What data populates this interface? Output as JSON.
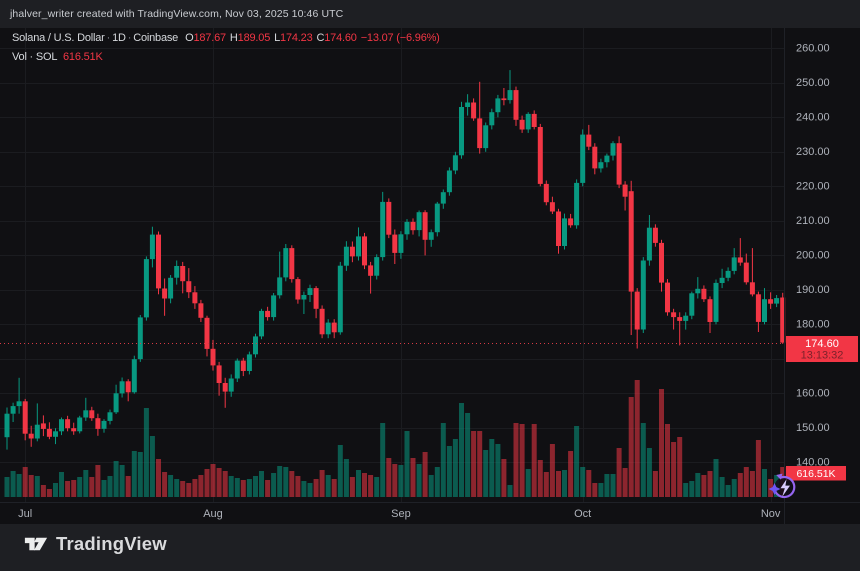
{
  "attribution": "jhalver_writer created with TradingView.com, Nov 03, 2025 10:46 UTC",
  "legend": {
    "symbol": "Solana / U.S. Dollar",
    "separator": "·",
    "interval": "1D",
    "exchange": "Coinbase",
    "o_label": "O",
    "o_value": "187.67",
    "h_label": "H",
    "h_value": "189.05",
    "l_label": "L",
    "l_value": "174.23",
    "c_label": "C",
    "c_value": "174.60",
    "change": "−13.07 (−6.96%)",
    "vol_label": "Vol · SOL",
    "vol_value": "616.51K"
  },
  "price_label": {
    "price": "174.60",
    "countdown": "13:13:32"
  },
  "volume_label": "616.51K",
  "footer": {
    "brand": "TradingView"
  },
  "icons": {
    "boost_icon": "lightning-refresh",
    "sparkle_icon": "sparkle",
    "brand_icon": "tradingview-logo"
  },
  "colors": {
    "up": "#089981",
    "down": "#f23645",
    "volume_up": "rgba(8,153,129,0.55)",
    "volume_down": "rgba(242,54,69,0.55)",
    "label_bg": "#f23645",
    "label_text": "#ffffff",
    "countdown_text": "#7c222b",
    "axis_text": "#aeb2ba",
    "grid": "#1b1c20",
    "chart_bg": "#101013",
    "frame_bg": "#1e1f23",
    "price_line": "#d63a45"
  },
  "chart_data": {
    "type": "candlestick",
    "title": "Solana / U.S. Dollar",
    "exchange": "Coinbase",
    "interval": "1D",
    "x_start": "2025-06-28",
    "x_end": "2025-11-03",
    "ylim_visible": [
      130,
      266
    ],
    "price_axis_ticks": [
      "260.00",
      "250.00",
      "240.00",
      "230.00",
      "220.00",
      "210.00",
      "200.00",
      "190.00",
      "180.00",
      "170.00",
      "160.00",
      "150.00",
      "140.00"
    ],
    "months": [
      {
        "label": "Jul",
        "day_index": 3
      },
      {
        "label": "Aug",
        "day_index": 34
      },
      {
        "label": "Sep",
        "day_index": 65
      },
      {
        "label": "Oct",
        "day_index": 95
      },
      {
        "label": "Nov",
        "day_index": 126
      }
    ],
    "last": {
      "open": 187.67,
      "high": 189.05,
      "low": 174.23,
      "close": 174.6,
      "volume_k": 616.51
    },
    "volume_unit": "K SOL",
    "candles_format": [
      "open",
      "high",
      "low",
      "close",
      "volume_k"
    ],
    "candles": [
      [
        147.2,
        155.8,
        143.6,
        154.0,
        411
      ],
      [
        154.0,
        157.2,
        151.6,
        156.2,
        534
      ],
      [
        156.2,
        164.4,
        154.0,
        157.6,
        473
      ],
      [
        157.6,
        158.3,
        146.3,
        148.2,
        617
      ],
      [
        148.2,
        150.5,
        144.4,
        146.8,
        452
      ],
      [
        146.8,
        157.0,
        146.0,
        150.8,
        432
      ],
      [
        151.2,
        153.5,
        147.5,
        149.6,
        247
      ],
      [
        149.6,
        151.5,
        146.6,
        147.3,
        164
      ],
      [
        147.3,
        149.8,
        145.2,
        148.9,
        288
      ],
      [
        148.9,
        152.9,
        147.8,
        152.4,
        514
      ],
      [
        152.4,
        153.4,
        148.9,
        149.8,
        329
      ],
      [
        149.8,
        151.4,
        147.9,
        148.9,
        349
      ],
      [
        148.9,
        153.4,
        148.3,
        152.9,
        411
      ],
      [
        152.9,
        158.6,
        151.9,
        155.0,
        555
      ],
      [
        155.0,
        156.0,
        151.9,
        152.7,
        411
      ],
      [
        152.7,
        154.0,
        147.6,
        149.6,
        658
      ],
      [
        149.6,
        152.4,
        148.5,
        151.9,
        349
      ],
      [
        151.9,
        155.2,
        150.9,
        154.4,
        432
      ],
      [
        154.4,
        162.4,
        153.9,
        159.9,
        740
      ],
      [
        159.9,
        164.5,
        158.7,
        163.4,
        658
      ],
      [
        163.4,
        164.0,
        157.6,
        160.2,
        432
      ],
      [
        160.2,
        170.8,
        159.8,
        169.8,
        945
      ],
      [
        169.8,
        182.6,
        169.0,
        181.9,
        925
      ],
      [
        181.9,
        199.6,
        181.0,
        198.8,
        1829
      ],
      [
        198.8,
        208.2,
        196.4,
        205.9,
        1254
      ],
      [
        205.9,
        206.8,
        188.6,
        190.3,
        781
      ],
      [
        190.3,
        193.2,
        182.4,
        187.4,
        514
      ],
      [
        187.4,
        194.2,
        186.0,
        193.4,
        452
      ],
      [
        193.4,
        198.4,
        191.4,
        196.8,
        370
      ],
      [
        196.8,
        198.0,
        188.9,
        192.4,
        329
      ],
      [
        192.4,
        196.2,
        187.5,
        189.2,
        288
      ],
      [
        189.2,
        191.0,
        184.4,
        186.0,
        370
      ],
      [
        186.0,
        187.0,
        180.6,
        181.8,
        452
      ],
      [
        181.8,
        182.4,
        170.6,
        172.8,
        575
      ],
      [
        172.8,
        175.4,
        166.5,
        168.0,
        678
      ],
      [
        168.0,
        169.0,
        159.2,
        162.9,
        596
      ],
      [
        162.9,
        164.4,
        155.7,
        160.4,
        534
      ],
      [
        160.4,
        165.4,
        158.9,
        164.2,
        432
      ],
      [
        164.2,
        170.0,
        163.2,
        169.4,
        390
      ],
      [
        169.4,
        170.2,
        164.9,
        166.4,
        349
      ],
      [
        166.4,
        172.0,
        165.4,
        171.2,
        370
      ],
      [
        171.2,
        177.2,
        170.3,
        176.4,
        432
      ],
      [
        176.4,
        184.4,
        175.6,
        183.8,
        534
      ],
      [
        183.8,
        185.0,
        181.0,
        182.0,
        349
      ],
      [
        182.0,
        189.0,
        181.0,
        188.3,
        493
      ],
      [
        188.3,
        201.0,
        187.4,
        193.5,
        637
      ],
      [
        193.5,
        203.2,
        192.4,
        202.0,
        617
      ],
      [
        202.0,
        202.8,
        192.0,
        193.0,
        534
      ],
      [
        193.0,
        193.6,
        185.9,
        187.1,
        432
      ],
      [
        187.1,
        189.4,
        182.9,
        188.4,
        329
      ],
      [
        188.4,
        191.4,
        186.4,
        190.4,
        288
      ],
      [
        190.4,
        191.0,
        181.7,
        184.4,
        370
      ],
      [
        184.4,
        185.4,
        175.9,
        177.0,
        555
      ],
      [
        177.0,
        181.4,
        175.9,
        180.4,
        452
      ],
      [
        180.4,
        181.4,
        175.9,
        177.6,
        370
      ],
      [
        177.6,
        198.0,
        176.9,
        196.9,
        1069
      ],
      [
        196.9,
        204.0,
        195.4,
        202.4,
        781
      ],
      [
        202.4,
        203.9,
        197.9,
        199.6,
        411
      ],
      [
        199.6,
        208.0,
        198.4,
        205.4,
        555
      ],
      [
        205.4,
        206.4,
        195.9,
        197.0,
        493
      ],
      [
        197.0,
        198.0,
        188.8,
        194.0,
        452
      ],
      [
        194.0,
        200.2,
        192.9,
        199.4,
        411
      ],
      [
        199.4,
        218.3,
        198.4,
        215.4,
        1521
      ],
      [
        215.4,
        216.4,
        204.9,
        205.9,
        801
      ],
      [
        205.9,
        207.4,
        197.4,
        200.6,
        678
      ],
      [
        200.6,
        206.9,
        198.9,
        206.0,
        658
      ],
      [
        206.0,
        210.4,
        204.4,
        209.6,
        1356
      ],
      [
        209.6,
        210.6,
        205.9,
        207.2,
        801
      ],
      [
        207.2,
        212.9,
        205.4,
        212.4,
        678
      ],
      [
        212.4,
        213.0,
        199.9,
        204.4,
        925
      ],
      [
        204.4,
        207.4,
        202.4,
        206.6,
        452
      ],
      [
        206.6,
        215.4,
        205.4,
        214.9,
        617
      ],
      [
        214.9,
        219.0,
        213.4,
        218.2,
        1521
      ],
      [
        218.2,
        225.4,
        217.2,
        224.5,
        1048
      ],
      [
        224.5,
        229.9,
        223.4,
        228.9,
        1192
      ],
      [
        228.9,
        244.4,
        227.9,
        242.9,
        1932
      ],
      [
        242.9,
        246.6,
        240.4,
        244.2,
        1726
      ],
      [
        244.2,
        245.4,
        238.9,
        239.6,
        1356
      ],
      [
        239.6,
        250.2,
        229.4,
        231.0,
        1356
      ],
      [
        231.0,
        238.4,
        229.9,
        237.6,
        966
      ],
      [
        237.6,
        242.4,
        236.4,
        241.4,
        1192
      ],
      [
        241.4,
        246.4,
        239.9,
        245.4,
        1089
      ],
      [
        245.4,
        248.4,
        243.4,
        244.9,
        781
      ],
      [
        244.9,
        253.6,
        243.9,
        247.8,
        247
      ],
      [
        247.8,
        248.8,
        237.4,
        239.2,
        1521
      ],
      [
        239.2,
        240.4,
        235.4,
        236.4,
        1500
      ],
      [
        236.4,
        241.4,
        235.4,
        240.9,
        575
      ],
      [
        240.9,
        241.9,
        236.4,
        237.1,
        1500
      ],
      [
        237.1,
        238.0,
        219.9,
        220.6,
        760
      ],
      [
        220.6,
        221.6,
        214.4,
        215.3,
        514
      ],
      [
        215.3,
        216.9,
        211.9,
        212.6,
        1089
      ],
      [
        212.6,
        213.4,
        200.4,
        202.6,
        534
      ],
      [
        202.6,
        212.0,
        201.6,
        210.6,
        555
      ],
      [
        210.6,
        211.9,
        207.9,
        208.6,
        945
      ],
      [
        208.6,
        221.9,
        207.6,
        220.9,
        1459
      ],
      [
        220.9,
        236.4,
        219.9,
        234.9,
        617
      ],
      [
        234.9,
        237.7,
        230.4,
        231.4,
        555
      ],
      [
        231.4,
        232.4,
        223.4,
        225.1,
        288
      ],
      [
        225.1,
        227.9,
        223.9,
        226.9,
        288
      ],
      [
        226.9,
        229.4,
        225.4,
        228.8,
        473
      ],
      [
        228.8,
        233.0,
        227.4,
        232.4,
        473
      ],
      [
        232.4,
        234.4,
        219.4,
        220.4,
        1007
      ],
      [
        220.4,
        221.4,
        212.9,
        216.9,
        596
      ],
      [
        218.5,
        221.5,
        176.8,
        189.4,
        2055
      ],
      [
        189.4,
        190.4,
        172.9,
        178.4,
        2404
      ],
      [
        178.4,
        199.4,
        177.4,
        198.4,
        1521
      ],
      [
        198.4,
        211.6,
        196.9,
        207.9,
        1007
      ],
      [
        207.9,
        208.9,
        202.4,
        203.5,
        534
      ],
      [
        203.5,
        204.4,
        189.4,
        192.0,
        2219
      ],
      [
        192.0,
        193.0,
        182.4,
        183.4,
        1500
      ],
      [
        183.4,
        184.4,
        178.4,
        182.0,
        1130
      ],
      [
        182.0,
        183.4,
        173.8,
        180.9,
        1233
      ],
      [
        180.9,
        183.4,
        178.4,
        182.4,
        288
      ],
      [
        182.4,
        189.4,
        181.4,
        188.9,
        329
      ],
      [
        188.9,
        193.6,
        187.4,
        190.2,
        493
      ],
      [
        190.2,
        191.2,
        186.4,
        187.2,
        452
      ],
      [
        187.2,
        188.0,
        177.4,
        180.6,
        534
      ],
      [
        180.6,
        192.9,
        179.9,
        191.9,
        781
      ],
      [
        191.9,
        196.0,
        190.4,
        193.4,
        411
      ],
      [
        193.4,
        196.4,
        192.4,
        195.4,
        247
      ],
      [
        195.4,
        202.0,
        194.4,
        199.3,
        370
      ],
      [
        199.3,
        204.9,
        196.9,
        197.8,
        493
      ],
      [
        197.8,
        200.4,
        191.4,
        192.1,
        617
      ],
      [
        192.1,
        202.0,
        188.0,
        188.6,
        534
      ],
      [
        188.6,
        189.4,
        177.7,
        180.6,
        1171
      ],
      [
        180.6,
        190.4,
        179.9,
        187.2,
        575
      ],
      [
        187.2,
        189.2,
        184.4,
        185.9,
        370
      ],
      [
        185.9,
        188.4,
        184.9,
        187.5,
        452
      ],
      [
        187.67,
        189.05,
        174.23,
        174.6,
        616.51
      ]
    ]
  }
}
